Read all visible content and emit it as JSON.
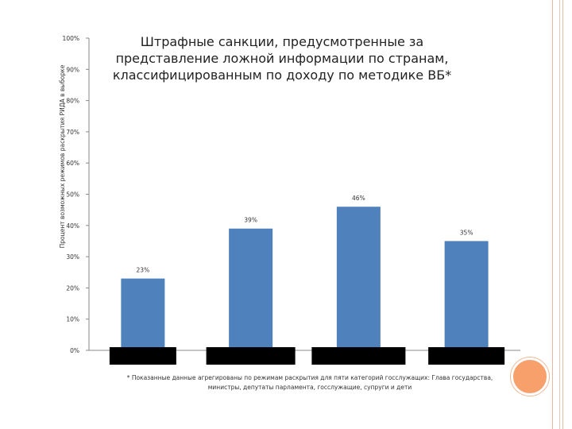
{
  "chart_data": {
    "type": "bar",
    "title": "Штрафные санкции, предусмотренные за представление ложной информации по странам, классифицированным по доходу по методике ВБ*",
    "xlabel": "",
    "ylabel": "Процент возможных режимов раскрытия РИДА в выборке",
    "categories": [
      "",
      "",
      "",
      ""
    ],
    "values": [
      23,
      39,
      46,
      35
    ],
    "data_labels": [
      "23%",
      "39%",
      "46%",
      "35%"
    ],
    "ylim": [
      0,
      100
    ],
    "y_ticks": [
      "0%",
      "10%",
      "20%",
      "30%",
      "40%",
      "50%",
      "60%",
      "70%",
      "80%",
      "90%",
      "100%"
    ],
    "grid": false,
    "legend": "none",
    "bar_color": "#4f81bd",
    "category_label_box_color": "#000000"
  },
  "footnote": "* Показанные данные агрегированы по режимам раскрытия для пяти категорий госслужащих: Глава государства, министры, депутаты парламента, госслужащие, супруги и дети",
  "colors": {
    "accent_circle": "#f7a06c",
    "frame": "#e8b8a0"
  }
}
